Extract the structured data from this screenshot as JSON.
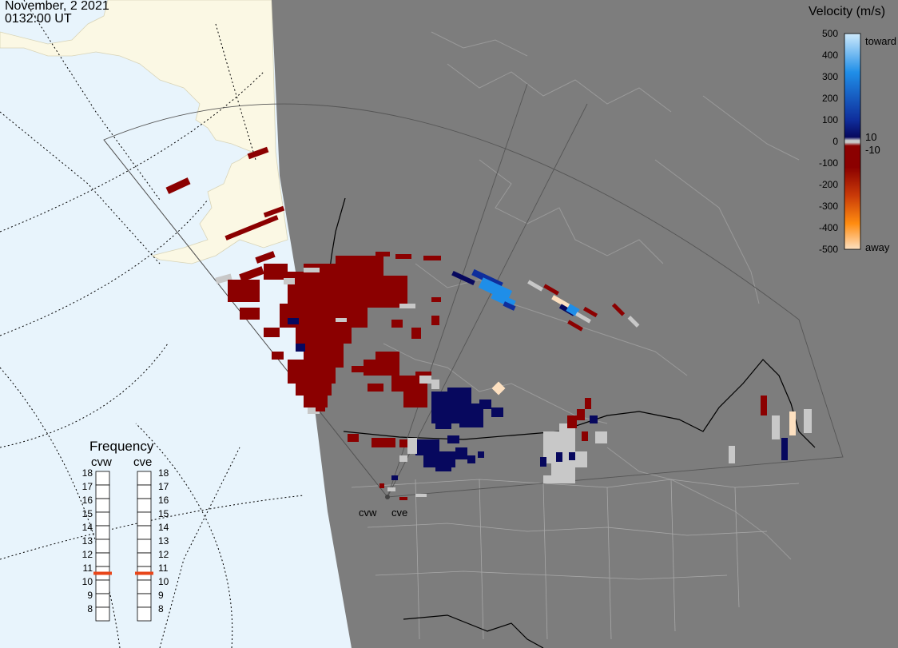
{
  "header": {
    "date": "November, 2 2021",
    "time": "0132:00 UT"
  },
  "legend": {
    "title": "Velocity (m/s)",
    "ticks": [
      "500",
      "400",
      "300",
      "200",
      "100",
      "0",
      "-100",
      "-200",
      "-300",
      "-400",
      "-500"
    ],
    "toward_label": "toward",
    "away_label": "away",
    "plus_label": "10",
    "minus_label": "-10",
    "colors": {
      "toward_light": "#cfeafc",
      "toward_mid": "#1f8ee8",
      "toward_dark": "#0f2e9c",
      "navy": "#07085e",
      "gray": "#c8c8c8",
      "away_dark": "#8b0000",
      "away_mid": "#c93a08",
      "away_orange": "#ff8c10",
      "away_light": "#fde0c0"
    }
  },
  "frequency": {
    "title": "Frequency",
    "radars": [
      "cvw",
      "cve"
    ],
    "levels": [
      "18",
      "17",
      "16",
      "15",
      "14",
      "13",
      "12",
      "11",
      "10",
      "9",
      "8"
    ],
    "cvw_value": 10.5,
    "cve_value": 10.5,
    "marker_color": "#e8461a"
  },
  "map": {
    "night_color": "#7a7a7a",
    "ocean_color": "#e8f4fc",
    "land_day_color": "#fbf8e4",
    "radar_labels": [
      "cvw",
      "cve"
    ]
  }
}
